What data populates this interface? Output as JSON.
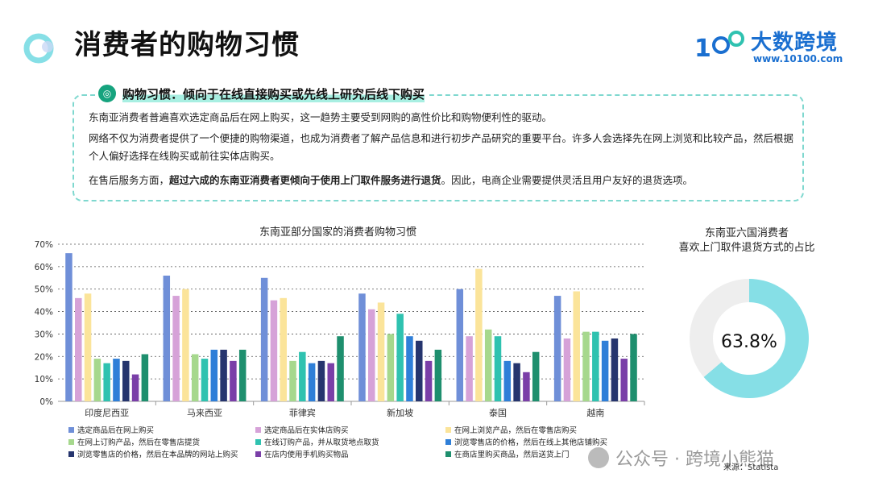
{
  "page": {
    "title": "消费者的购物习惯",
    "logo_text": "大数跨境",
    "logo_url": "www.10100.com"
  },
  "info": {
    "heading": "购物习惯：倾向于在线直接购买或先线上研究后线下购买",
    "p1": "东南亚消费者普遍喜欢选定商品后在网上购买，这一趋势主要受到网购的高性价比和购物便利性的驱动。",
    "p2": "网络不仅为消费者提供了一个便捷的购物渠道，也成为消费者了解产品信息和进行初步产品研究的重要平台。许多人会选择先在网上浏览和比较产品，然后根据个人偏好选择在线购买或前往实体店购买。",
    "p3_prefix": "在售后服务方面，",
    "p3_bold": "超过六成的东南亚消费者更倾向于使用上门取件服务进行退货",
    "p3_suffix": "。因此，电商企业需要提供灵活且用户友好的退货选项。"
  },
  "chart_data": [
    {
      "type": "bar",
      "title": "东南亚部分国家的消费者购物习惯",
      "categories": [
        "印度尼西亚",
        "马来西亚",
        "菲律宾",
        "新加坡",
        "泰国",
        "越南"
      ],
      "ylim": [
        0,
        70
      ],
      "yticks": [
        "0%",
        "10%",
        "20%",
        "30%",
        "40%",
        "50%",
        "60%",
        "70%"
      ],
      "grid": true,
      "legend_position": "bottom",
      "series": [
        {
          "name": "选定商品后在网上购买",
          "color": "#6f8fd8",
          "values": [
            66,
            56,
            55,
            48,
            50,
            47
          ]
        },
        {
          "name": "选定商品后在实体店购买",
          "color": "#d6a2d8",
          "values": [
            46,
            47,
            45,
            41,
            29,
            28
          ]
        },
        {
          "name": "在网上浏览产品，然后在零售店购买",
          "color": "#fbe49a",
          "values": [
            48,
            50,
            46,
            44,
            59,
            49
          ]
        },
        {
          "name": "在网上订购产品，然后在零售店提货",
          "color": "#a6d88d",
          "values": [
            19,
            21,
            18,
            30,
            32,
            31
          ]
        },
        {
          "name": "在线订购产品，并从取货地点取货",
          "color": "#2fc2b0",
          "values": [
            17,
            19,
            22,
            39,
            29,
            31
          ]
        },
        {
          "name": "浏览零售店的价格，然后在线上其他店铺购买",
          "color": "#2f7fd8",
          "values": [
            19,
            23,
            17,
            29,
            18,
            27
          ]
        },
        {
          "name": "浏览零售店的价格，然后在本品牌的网站上购买",
          "color": "#26356e",
          "values": [
            18,
            23,
            18,
            27,
            17,
            28
          ]
        },
        {
          "name": "在店内使用手机购买物品",
          "color": "#7a3fa8",
          "values": [
            12,
            18,
            17,
            18,
            13,
            19
          ]
        },
        {
          "name": "在商店里购买商品，然后送货上门",
          "color": "#1e8f6e",
          "values": [
            21,
            23,
            29,
            23,
            22,
            30
          ]
        }
      ]
    },
    {
      "type": "pie",
      "title_line1": "东南亚六国消费者",
      "title_line2": "喜欢上门取件退货方式的占比",
      "values": [
        63.8,
        36.2
      ],
      "value_label": "63.8%",
      "colors": [
        "#86dfe6",
        "#eeeeee"
      ]
    }
  ],
  "footer": {
    "watermark": "公众号 · 跨境小熊猫",
    "source": "来源：Statista"
  }
}
